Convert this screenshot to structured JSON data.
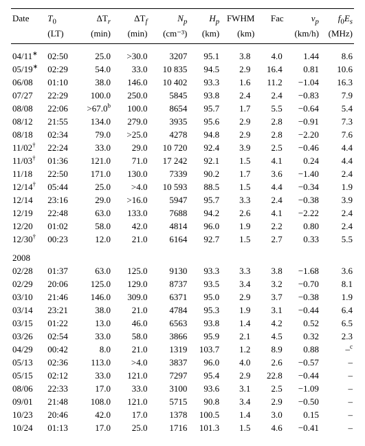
{
  "headers": {
    "date": "Date",
    "t0": "T",
    "t0_sub": "0",
    "t0_unit": "(LT)",
    "dtr": "ΔT",
    "dtr_sub": "r",
    "dtr_unit": "(min)",
    "dtf": "ΔT",
    "dtf_sub": "f",
    "dtf_unit": "(min)",
    "np": "N",
    "np_sub": "p",
    "np_unit": "(cm⁻³)",
    "hp": "H",
    "hp_sub": "p",
    "hp_unit": "(km)",
    "fwhm": "FWHM",
    "fwhm_unit": "(km)",
    "fac": "Fac",
    "vp": "v",
    "vp_sub": "p",
    "vp_unit": "(km/h)",
    "f0es": "f",
    "f0es_sub1": "0",
    "f0es_mid": "E",
    "f0es_sub2": "s",
    "f0es_unit": "(MHz)"
  },
  "year_break": "2008",
  "rows1": [
    {
      "date": "04/11",
      "sup": "∗",
      "t0": "02:50",
      "dtr": "25.0",
      "dtf": ">30.0",
      "np": "3207",
      "hp": "95.1",
      "fwhm": "3.8",
      "fac": "4.0",
      "vp": "1.44",
      "f0es": "8.6"
    },
    {
      "date": "05/19",
      "sup": "∗",
      "t0": "02:29",
      "dtr": "54.0",
      "dtf": "33.0",
      "np": "10 835",
      "hp": "94.5",
      "fwhm": "2.9",
      "fac": "16.4",
      "vp": "0.81",
      "f0es": "10.6"
    },
    {
      "date": "06/08",
      "sup": "",
      "t0": "01:10",
      "dtr": "38.0",
      "dtf": "146.0",
      "np": "10 402",
      "hp": "93.3",
      "fwhm": "1.6",
      "fac": "11.2",
      "vp": "−1.04",
      "f0es": "16.3"
    },
    {
      "date": "07/27",
      "sup": "",
      "t0": "22:29",
      "dtr": "100.0",
      "dtf": "250.0",
      "np": "5845",
      "hp": "93.8",
      "fwhm": "2.4",
      "fac": "2.4",
      "vp": "−0.83",
      "f0es": "7.9"
    },
    {
      "date": "08/08",
      "sup": "",
      "t0": "22:06",
      "dtr": ">67.0",
      "dtr_sup": "b",
      "dtf": "100.0",
      "np": "8654",
      "hp": "95.7",
      "fwhm": "1.7",
      "fac": "5.5",
      "vp": "−0.64",
      "f0es": "5.4"
    },
    {
      "date": "08/12",
      "sup": "",
      "t0": "21:55",
      "dtr": "134.0",
      "dtf": "279.0",
      "np": "3935",
      "hp": "95.6",
      "fwhm": "2.9",
      "fac": "2.8",
      "vp": "−0.91",
      "f0es": "7.3"
    },
    {
      "date": "08/18",
      "sup": "",
      "t0": "02:34",
      "dtr": "79.0",
      "dtf": ">25.0",
      "np": "4278",
      "hp": "94.8",
      "fwhm": "2.9",
      "fac": "2.8",
      "vp": "−2.20",
      "f0es": "7.6"
    },
    {
      "date": "11/02",
      "sup": "†",
      "t0": "22:24",
      "dtr": "33.0",
      "dtf": "29.0",
      "np": "10 720",
      "hp": "92.4",
      "fwhm": "3.9",
      "fac": "2.5",
      "vp": "−0.46",
      "f0es": "4.4"
    },
    {
      "date": "11/03",
      "sup": "†",
      "t0": "01:36",
      "dtr": "121.0",
      "dtf": "71.0",
      "np": "17 242",
      "hp": "92.1",
      "fwhm": "1.5",
      "fac": "4.1",
      "vp": "0.24",
      "f0es": "4.4"
    },
    {
      "date": "11/18",
      "sup": "",
      "t0": "22:50",
      "dtr": "171.0",
      "dtf": "130.0",
      "np": "7339",
      "hp": "90.2",
      "fwhm": "1.7",
      "fac": "3.6",
      "vp": "−1.40",
      "f0es": "2.4"
    },
    {
      "date": "12/14",
      "sup": "†",
      "t0": "05:44",
      "dtr": "25.0",
      "dtf": ">4.0",
      "np": "10 593",
      "hp": "88.5",
      "fwhm": "1.5",
      "fac": "4.4",
      "vp": "−0.34",
      "f0es": "1.9"
    },
    {
      "date": "12/14",
      "sup": "",
      "t0": "23:16",
      "dtr": "29.0",
      "dtf": ">16.0",
      "np": "5947",
      "hp": "95.7",
      "fwhm": "3.3",
      "fac": "2.4",
      "vp": "−0.38",
      "f0es": "3.9"
    },
    {
      "date": "12/19",
      "sup": "",
      "t0": "22:48",
      "dtr": "63.0",
      "dtf": "133.0",
      "np": "7688",
      "hp": "94.2",
      "fwhm": "2.6",
      "fac": "4.1",
      "vp": "−2.22",
      "f0es": "2.4"
    },
    {
      "date": "12/20",
      "sup": "",
      "t0": "01:02",
      "dtr": "58.0",
      "dtf": "42.0",
      "np": "4814",
      "hp": "96.0",
      "fwhm": "1.9",
      "fac": "2.2",
      "vp": "0.80",
      "f0es": "2.4"
    },
    {
      "date": "12/30",
      "sup": "†",
      "t0": "00:23",
      "dtr": "12.0",
      "dtf": "21.0",
      "np": "6164",
      "hp": "92.7",
      "fwhm": "1.5",
      "fac": "2.7",
      "vp": "0.33",
      "f0es": "5.5"
    }
  ],
  "rows2": [
    {
      "date": "02/28",
      "sup": "",
      "t0": "01:37",
      "dtr": "63.0",
      "dtf": "125.0",
      "np": "9130",
      "hp": "93.3",
      "fwhm": "3.3",
      "fac": "3.8",
      "vp": "−1.68",
      "f0es": "3.6"
    },
    {
      "date": "02/29",
      "sup": "",
      "t0": "20:06",
      "dtr": "125.0",
      "dtf": "129.0",
      "np": "8737",
      "hp": "93.5",
      "fwhm": "3.4",
      "fac": "3.2",
      "vp": "−0.70",
      "f0es": "8.1"
    },
    {
      "date": "03/10",
      "sup": "",
      "t0": "21:46",
      "dtr": "146.0",
      "dtf": "309.0",
      "np": "6371",
      "hp": "95.0",
      "fwhm": "2.9",
      "fac": "3.7",
      "vp": "−0.38",
      "f0es": "1.9"
    },
    {
      "date": "03/14",
      "sup": "",
      "t0": "23:21",
      "dtr": "38.0",
      "dtf": "21.0",
      "np": "4784",
      "hp": "95.3",
      "fwhm": "1.9",
      "fac": "3.1",
      "vp": "−0.44",
      "f0es": "6.4"
    },
    {
      "date": "03/15",
      "sup": "",
      "t0": "01:22",
      "dtr": "13.0",
      "dtf": "46.0",
      "np": "6563",
      "hp": "93.8",
      "fwhm": "1.4",
      "fac": "4.2",
      "vp": "0.52",
      "f0es": "6.5"
    },
    {
      "date": "03/26",
      "sup": "",
      "t0": "02:54",
      "dtr": "33.0",
      "dtf": "58.0",
      "np": "3866",
      "hp": "95.9",
      "fwhm": "2.1",
      "fac": "4.5",
      "vp": "0.32",
      "f0es": "2.3"
    },
    {
      "date": "04/29",
      "sup": "",
      "t0": "00:42",
      "dtr": "8.0",
      "dtf": "21.0",
      "np": "1319",
      "hp": "103.7",
      "fwhm": "1.2",
      "fac": "8.9",
      "vp": "0.88",
      "f0es": "–",
      "f0es_sup": "c"
    },
    {
      "date": "05/13",
      "sup": "",
      "t0": "02:36",
      "dtr": "113.0",
      "dtf": ">4.0",
      "np": "3837",
      "hp": "96.0",
      "fwhm": "4.0",
      "fac": "2.6",
      "vp": "−0.57",
      "f0es": "–"
    },
    {
      "date": "05/15",
      "sup": "",
      "t0": "02:12",
      "dtr": "33.0",
      "dtf": "121.0",
      "np": "7297",
      "hp": "95.4",
      "fwhm": "2.9",
      "fac": "22.8",
      "vp": "−0.44",
      "f0es": "–"
    },
    {
      "date": "08/06",
      "sup": "",
      "t0": "22:33",
      "dtr": "17.0",
      "dtf": "33.0",
      "np": "3100",
      "hp": "93.6",
      "fwhm": "3.1",
      "fac": "2.5",
      "vp": "−1.09",
      "f0es": "–"
    },
    {
      "date": "09/01",
      "sup": "",
      "t0": "21:48",
      "dtr": "108.0",
      "dtf": "121.0",
      "np": "5715",
      "hp": "90.8",
      "fwhm": "3.4",
      "fac": "2.9",
      "vp": "−0.50",
      "f0es": "–"
    },
    {
      "date": "10/23",
      "sup": "",
      "t0": "20:46",
      "dtr": "42.0",
      "dtf": "17.0",
      "np": "1378",
      "hp": "100.5",
      "fwhm": "1.4",
      "fac": "3.0",
      "vp": "0.15",
      "f0es": "–"
    },
    {
      "date": "10/24",
      "sup": "",
      "t0": "01:13",
      "dtr": "17.0",
      "dtf": "25.0",
      "np": "1716",
      "hp": "101.3",
      "fwhm": "1.5",
      "fac": "4.6",
      "vp": "−0.41",
      "f0es": "–"
    }
  ]
}
